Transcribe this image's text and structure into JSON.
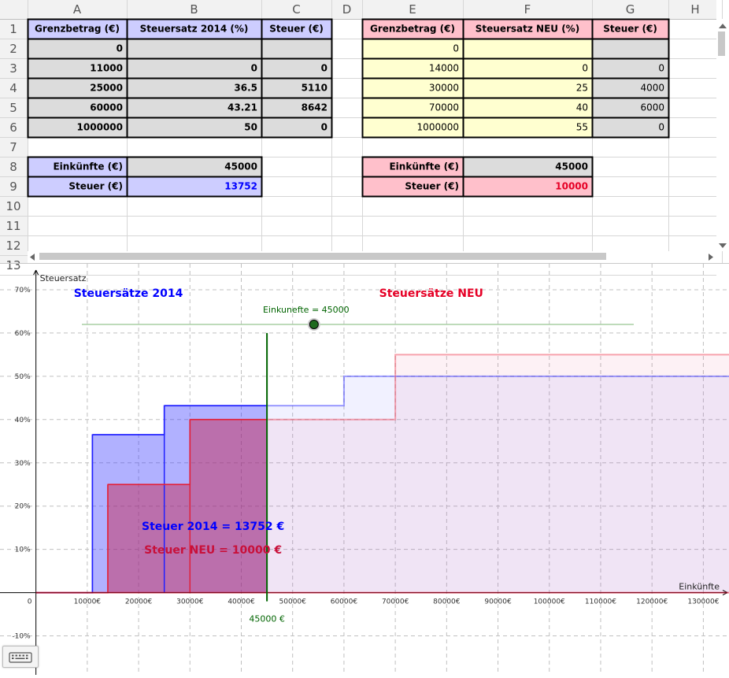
{
  "spreadsheet": {
    "columns": [
      "A",
      "B",
      "C",
      "D",
      "E",
      "F",
      "G",
      "H"
    ],
    "rows": [
      "1",
      "2",
      "3",
      "4",
      "5",
      "6",
      "7",
      "8",
      "9",
      "10",
      "11",
      "12",
      "13"
    ],
    "table_2014": {
      "headers": [
        "Grenzbetrag (€)",
        "Steuersatz 2014 (%)",
        "Steuer (€)"
      ],
      "rows": [
        [
          "0",
          "",
          ""
        ],
        [
          "11000",
          "0",
          "0"
        ],
        [
          "25000",
          "36.5",
          "5110"
        ],
        [
          "60000",
          "43.21",
          "8642"
        ],
        [
          "1000000",
          "50",
          "0"
        ]
      ]
    },
    "table_neu": {
      "headers": [
        "Grenzbetrag (€)",
        "Steuersatz NEU (%)",
        "Steuer (€)"
      ],
      "rows": [
        [
          "0",
          "",
          ""
        ],
        [
          "14000",
          "0",
          "0"
        ],
        [
          "30000",
          "25",
          "4000"
        ],
        [
          "70000",
          "40",
          "6000"
        ],
        [
          "1000000",
          "55",
          "0"
        ]
      ]
    },
    "summary_2014": {
      "income_label": "Einkünfte (€)",
      "income_value": "45000",
      "tax_label": "Steuer (€)",
      "tax_value": "13752"
    },
    "summary_neu": {
      "income_label": "Einkünfte (€)",
      "income_value": "45000",
      "tax_label": "Steuer (€)",
      "tax_value": "10000"
    }
  },
  "graph": {
    "y_axis_label": "Steuersatz",
    "x_axis_label": "Einkünfte",
    "origin_label": "0",
    "title_2014": "Steuersätze 2014",
    "title_neu": "Steuersätze NEU",
    "slider_label": "Einkunefte = 45000",
    "slider": {
      "min": 0,
      "max": 107000,
      "value": 45000
    },
    "income_marker_label": "45000 €",
    "tax_2014_text": "Steuer 2014 = 13752 €",
    "tax_neu_text": "Steuer NEU = 10000 €",
    "x_ticks": [
      10000,
      20000,
      30000,
      40000,
      50000,
      60000,
      70000,
      80000,
      90000,
      100000,
      110000,
      120000,
      130000
    ],
    "x_tick_labels": [
      "10000€",
      "20000€",
      "30000€",
      "40000€",
      "50000€",
      "60000€",
      "70000€",
      "80000€",
      "90000€",
      "100000€",
      "110000€",
      "120000€",
      "130000€"
    ],
    "y_ticks": [
      -10,
      10,
      20,
      30,
      40,
      50,
      60,
      70
    ],
    "y_tick_labels": [
      "-10%",
      "10%",
      "20%",
      "30%",
      "40%",
      "50%",
      "60%",
      "70%"
    ],
    "x_range": [
      -7000,
      135000
    ],
    "y_range": [
      -19,
      76
    ],
    "colors": {
      "blue": "#0000ff",
      "red": "#e60026",
      "green": "#006400",
      "slider_line": "#a9cfa4"
    }
  },
  "chart_data": {
    "type": "area",
    "x_range": [
      -7000,
      135000
    ],
    "y_range": [
      -19,
      76
    ],
    "grid": true,
    "income": 45000,
    "series": [
      {
        "name": "Steuersätze 2014",
        "steps": [
          [
            0,
            0
          ],
          [
            11000,
            36.5
          ],
          [
            25000,
            43.21
          ],
          [
            60000,
            50
          ]
        ],
        "color": "#0000ff"
      },
      {
        "name": "Steuersätze NEU",
        "steps": [
          [
            0,
            0
          ],
          [
            14000,
            25
          ],
          [
            30000,
            40
          ],
          [
            70000,
            55
          ]
        ],
        "color": "#e60026"
      }
    ]
  }
}
